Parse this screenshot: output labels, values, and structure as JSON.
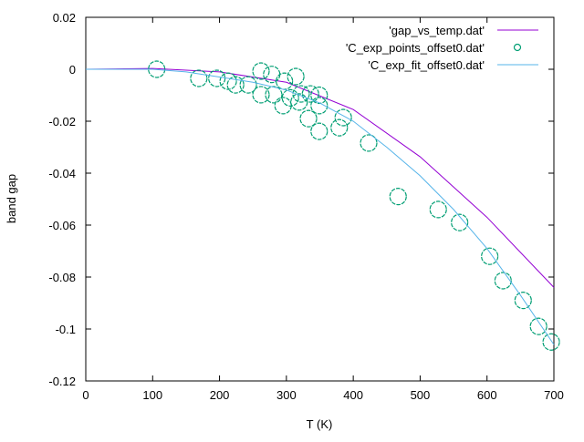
{
  "chart_data": {
    "type": "line",
    "title": "",
    "xlabel": "T (K)",
    "ylabel": "band gap",
    "xlim": [
      0,
      700
    ],
    "ylim": [
      -0.12,
      0.02
    ],
    "xticks": [
      0,
      100,
      200,
      300,
      400,
      500,
      600,
      700
    ],
    "xtick_labels": [
      "0",
      "100",
      "200",
      "300",
      "400",
      "500",
      "600",
      "700"
    ],
    "yticks": [
      0.02,
      0,
      -0.02,
      -0.04,
      -0.06,
      -0.08,
      -0.1,
      -0.12
    ],
    "ytick_labels": [
      "0.02",
      "0",
      "-0.02",
      "-0.04",
      "-0.06",
      "-0.08",
      "-0.1",
      "-0.12"
    ],
    "grid": false,
    "legend_position": "top-right",
    "series": [
      {
        "name": "'gap_vs_temp.dat'",
        "style": "line",
        "color": "#9400d3",
        "x": [
          0,
          100,
          200,
          300,
          400,
          500,
          600,
          700
        ],
        "y": [
          0,
          0.0003,
          -0.001,
          -0.005,
          -0.0155,
          -0.0337,
          -0.057,
          -0.084
        ]
      },
      {
        "name": "'C_exp_points_offset0.dat'",
        "style": "points",
        "color": "#009e73",
        "x": [
          106,
          169,
          196,
          213,
          224,
          243,
          262,
          262,
          278,
          281,
          297,
          295,
          306,
          314,
          319,
          322,
          336,
          333,
          349,
          349,
          349,
          379,
          385,
          423,
          467,
          527,
          559,
          604,
          624,
          654,
          677,
          696
        ],
        "y": [
          0.0,
          -0.0035,
          -0.0035,
          -0.0046,
          -0.006,
          -0.006,
          -0.0007,
          -0.0098,
          -0.002,
          -0.0098,
          -0.0046,
          -0.014,
          -0.011,
          -0.0028,
          -0.0126,
          -0.0095,
          -0.0095,
          -0.019,
          -0.01,
          -0.014,
          -0.0239,
          -0.0225,
          -0.0186,
          -0.0284,
          -0.049,
          -0.054,
          -0.059,
          -0.072,
          -0.0814,
          -0.089,
          -0.099,
          -0.105
        ]
      },
      {
        "name": "'C_exp_fit_offset0.dat'",
        "style": "line",
        "color": "#56b4e9",
        "x": [
          0,
          100,
          150,
          200,
          250,
          300,
          350,
          400,
          450,
          500,
          550,
          600,
          650,
          700
        ],
        "y": [
          0,
          0.0,
          -0.001,
          -0.003,
          -0.005,
          -0.008,
          -0.013,
          -0.02,
          -0.03,
          -0.041,
          -0.054,
          -0.069,
          -0.087,
          -0.106
        ]
      }
    ]
  }
}
